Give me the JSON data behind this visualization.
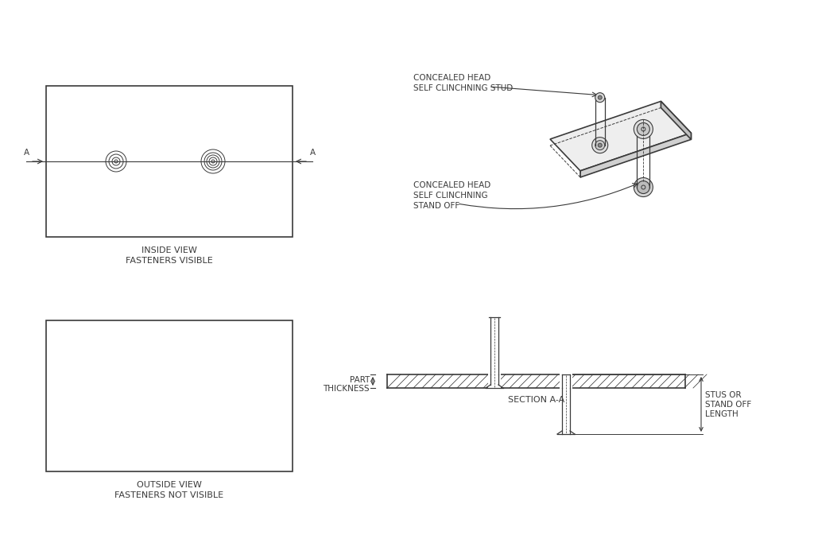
{
  "bg_color": "#ffffff",
  "line_color": "#3a3a3a",
  "text_color": "#3a3a3a",
  "inside_view_label1": "INSIDE VIEW",
  "inside_view_label2": "FASTENERS VISIBLE",
  "outside_view_label1": "OUTSIDE VIEW",
  "outside_view_label2": "FASTENERS NOT VISIBLE",
  "iso_label_stud1": "CONCEALED HEAD",
  "iso_label_stud2": "SELF CLINCHNING STUD",
  "iso_label_so1": "CONCEALED HEAD",
  "iso_label_so2": "SELF CLINCHNING",
  "iso_label_so3": "STAND OFF",
  "sec_label": "SECTION A-A",
  "sec_thick_label1": "PART",
  "sec_thick_label2": "THICKNESS",
  "sec_len_label1": "STUS OR",
  "sec_len_label2": "STAND OFF",
  "sec_len_label3": "LENGTH"
}
